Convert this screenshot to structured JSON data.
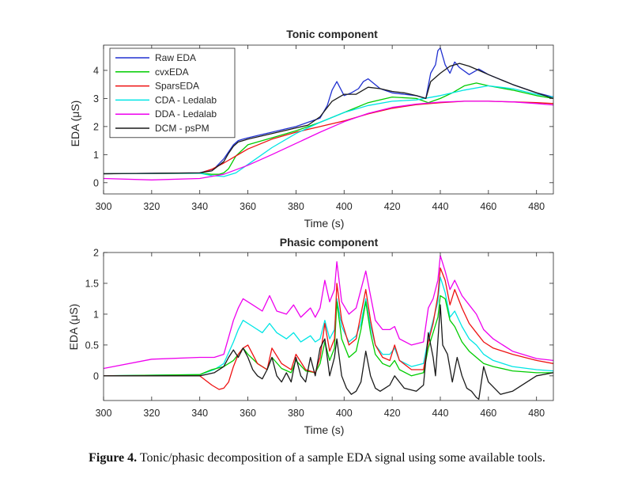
{
  "caption": {
    "label": "Figure 4.",
    "text": "Tonic/phasic decomposition of a sample EDA signal using some available tools."
  },
  "colors": {
    "Raw EDA": "#2030d0",
    "cvxEDA": "#00cc00",
    "SparsEDA": "#ee1111",
    "CDA - Ledalab": "#00e5e5",
    "DDA - Ledalab": "#ee00ee",
    "DCM - psPM": "#1a1a1a"
  },
  "chart_data": [
    {
      "type": "line",
      "title": "Tonic component",
      "xlabel": "Time (s)",
      "ylabel": "EDA (μS)",
      "xlim": [
        300,
        487
      ],
      "ylim": [
        -0.4,
        4.9
      ],
      "xticks": [
        300,
        320,
        340,
        360,
        380,
        400,
        420,
        440,
        460,
        480
      ],
      "yticks": [
        0,
        1,
        2,
        3,
        4
      ],
      "grid": false,
      "legend": "top-left",
      "series": [
        {
          "name": "Raw EDA",
          "x": [
            300,
            340,
            346,
            350,
            352,
            354,
            356,
            358,
            360,
            365,
            370,
            375,
            380,
            385,
            390,
            393,
            395,
            397,
            400,
            403,
            406,
            408,
            410,
            415,
            420,
            425,
            430,
            434,
            436,
            438,
            439,
            440,
            442,
            444,
            446,
            448,
            452,
            456,
            460,
            470,
            480,
            487
          ],
          "y": [
            0.32,
            0.35,
            0.5,
            0.85,
            1.1,
            1.35,
            1.5,
            1.55,
            1.6,
            1.7,
            1.8,
            1.9,
            2.0,
            2.15,
            2.3,
            2.75,
            3.3,
            3.6,
            3.1,
            3.2,
            3.35,
            3.6,
            3.7,
            3.35,
            3.2,
            3.15,
            3.1,
            3.0,
            3.9,
            4.2,
            4.7,
            4.8,
            4.2,
            3.9,
            4.3,
            4.1,
            3.85,
            4.05,
            3.85,
            3.5,
            3.2,
            3.05
          ]
        },
        {
          "name": "cvxEDA",
          "x": [
            300,
            340,
            345,
            348,
            350,
            352,
            355,
            360,
            370,
            380,
            390,
            400,
            410,
            420,
            430,
            435,
            440,
            445,
            450,
            455,
            460,
            470,
            480,
            487
          ],
          "y": [
            0.32,
            0.34,
            0.3,
            0.3,
            0.35,
            0.5,
            0.95,
            1.35,
            1.6,
            1.85,
            2.15,
            2.5,
            2.85,
            3.05,
            3.0,
            2.85,
            3.0,
            3.2,
            3.45,
            3.55,
            3.45,
            3.3,
            3.1,
            3.0
          ]
        },
        {
          "name": "SparsEDA",
          "x": [
            300,
            340,
            345,
            350,
            355,
            360,
            370,
            380,
            390,
            400,
            410,
            420,
            430,
            440,
            450,
            460,
            470,
            480,
            487
          ],
          "y": [
            0.32,
            0.34,
            0.48,
            0.7,
            0.95,
            1.2,
            1.55,
            1.8,
            2.0,
            2.2,
            2.45,
            2.65,
            2.78,
            2.85,
            2.9,
            2.9,
            2.88,
            2.85,
            2.82
          ]
        },
        {
          "name": "CDA - Ledalab",
          "x": [
            300,
            340,
            345,
            350,
            355,
            360,
            370,
            380,
            390,
            400,
            410,
            420,
            430,
            440,
            450,
            460,
            470,
            480,
            487
          ],
          "y": [
            0.32,
            0.34,
            0.25,
            0.22,
            0.35,
            0.65,
            1.25,
            1.75,
            2.15,
            2.5,
            2.75,
            2.9,
            2.95,
            3.1,
            3.3,
            3.45,
            3.35,
            3.15,
            3.05
          ]
        },
        {
          "name": "DDA - Ledalab",
          "x": [
            300,
            320,
            340,
            350,
            360,
            370,
            380,
            390,
            400,
            410,
            420,
            430,
            440,
            450,
            460,
            470,
            480,
            487
          ],
          "y": [
            0.15,
            0.1,
            0.15,
            0.3,
            0.62,
            1.0,
            1.4,
            1.8,
            2.17,
            2.47,
            2.68,
            2.8,
            2.87,
            2.9,
            2.9,
            2.88,
            2.82,
            2.77
          ]
        },
        {
          "name": "DCM - psPM",
          "x": [
            300,
            340,
            345,
            350,
            352,
            354,
            356,
            358,
            360,
            370,
            380,
            385,
            390,
            395,
            400,
            405,
            410,
            415,
            420,
            425,
            430,
            434,
            436,
            440,
            444,
            448,
            452,
            456,
            460,
            470,
            480,
            487
          ],
          "y": [
            0.32,
            0.35,
            0.42,
            0.75,
            1.05,
            1.3,
            1.45,
            1.5,
            1.55,
            1.75,
            1.95,
            2.05,
            2.35,
            2.9,
            3.15,
            3.15,
            3.4,
            3.35,
            3.25,
            3.2,
            3.1,
            3.0,
            3.6,
            3.9,
            4.15,
            4.25,
            4.15,
            4.0,
            3.85,
            3.5,
            3.2,
            3.0
          ]
        }
      ]
    },
    {
      "type": "line",
      "title": "Phasic component",
      "xlabel": "Time (s)",
      "ylabel": "EDA (μS)",
      "xlim": [
        300,
        487
      ],
      "ylim": [
        -0.4,
        2.0
      ],
      "xticks": [
        300,
        320,
        340,
        360,
        380,
        400,
        420,
        440,
        460,
        480
      ],
      "yticks": [
        0,
        0.5,
        1,
        1.5,
        2
      ],
      "grid": false,
      "series": [
        {
          "name": "DDA - Ledalab",
          "x": [
            300,
            320,
            340,
            346,
            350,
            354,
            356,
            358,
            362,
            366,
            369,
            372,
            376,
            379,
            382,
            386,
            388,
            390,
            392,
            394,
            396,
            397,
            399,
            402,
            405,
            407,
            409,
            411,
            413,
            416,
            419,
            421,
            423,
            428,
            433,
            435,
            437,
            439,
            440,
            442,
            444,
            446,
            449,
            452,
            455,
            458,
            462,
            470,
            480,
            487
          ],
          "y": [
            0.12,
            0.27,
            0.3,
            0.3,
            0.35,
            0.9,
            1.1,
            1.25,
            1.15,
            1.05,
            1.3,
            1.05,
            1.0,
            1.15,
            0.95,
            1.1,
            0.95,
            1.1,
            1.55,
            1.2,
            1.4,
            1.85,
            1.2,
            1.0,
            1.1,
            1.4,
            1.7,
            1.3,
            0.9,
            0.75,
            0.75,
            0.8,
            0.6,
            0.5,
            0.55,
            1.1,
            1.25,
            1.55,
            1.95,
            1.7,
            1.4,
            1.55,
            1.3,
            1.15,
            1.0,
            0.75,
            0.6,
            0.4,
            0.28,
            0.25
          ]
        },
        {
          "name": "CDA - Ledalab",
          "x": [
            300,
            340,
            346,
            350,
            354,
            356,
            358,
            362,
            366,
            369,
            372,
            376,
            379,
            382,
            386,
            388,
            390,
            392,
            394,
            396,
            397,
            399,
            402,
            405,
            407,
            409,
            411,
            413,
            416,
            419,
            421,
            423,
            428,
            433,
            435,
            437,
            439,
            440,
            442,
            444,
            446,
            449,
            452,
            455,
            458,
            462,
            470,
            480,
            487
          ],
          "y": [
            0.0,
            0.02,
            0.1,
            0.2,
            0.55,
            0.75,
            0.9,
            0.8,
            0.7,
            0.85,
            0.7,
            0.6,
            0.7,
            0.55,
            0.65,
            0.55,
            0.6,
            0.9,
            0.6,
            0.75,
            1.25,
            0.8,
            0.55,
            0.65,
            0.85,
            1.25,
            0.8,
            0.5,
            0.35,
            0.35,
            0.45,
            0.25,
            0.15,
            0.2,
            0.6,
            0.9,
            1.2,
            1.6,
            1.35,
            0.95,
            1.05,
            0.8,
            0.6,
            0.5,
            0.35,
            0.25,
            0.15,
            0.1,
            0.08
          ]
        },
        {
          "name": "cvxEDA",
          "x": [
            300,
            340,
            345,
            350,
            354,
            356,
            358,
            360,
            364,
            368,
            370,
            374,
            378,
            380,
            384,
            388,
            390,
            392,
            394,
            396,
            397,
            399,
            402,
            405,
            407,
            409,
            411,
            413,
            416,
            419,
            421,
            423,
            428,
            433,
            435,
            437,
            439,
            440,
            442,
            444,
            446,
            449,
            452,
            455,
            458,
            462,
            470,
            480,
            487
          ],
          "y": [
            0.0,
            0.02,
            0.1,
            0.15,
            0.25,
            0.35,
            0.45,
            0.35,
            0.2,
            0.1,
            0.3,
            0.12,
            0.05,
            0.25,
            0.08,
            0.05,
            0.2,
            0.55,
            0.25,
            0.45,
            1.2,
            0.6,
            0.3,
            0.4,
            0.75,
            1.2,
            0.7,
            0.35,
            0.2,
            0.15,
            0.25,
            0.1,
            0.0,
            0.05,
            0.45,
            0.7,
            0.95,
            1.3,
            1.25,
            0.9,
            0.8,
            0.55,
            0.4,
            0.3,
            0.2,
            0.15,
            0.08,
            0.05,
            0.05
          ]
        },
        {
          "name": "SparsEDA",
          "x": [
            300,
            340,
            345,
            348,
            350,
            352,
            354,
            356,
            358,
            360,
            364,
            368,
            370,
            374,
            378,
            380,
            384,
            388,
            390,
            392,
            394,
            396,
            397,
            399,
            402,
            405,
            407,
            409,
            411,
            413,
            416,
            419,
            421,
            423,
            428,
            433,
            435,
            437,
            439,
            440,
            442,
            444,
            446,
            449,
            452,
            455,
            458,
            462,
            470,
            480,
            487
          ],
          "y": [
            0.0,
            0.0,
            -0.15,
            -0.22,
            -0.2,
            -0.1,
            0.15,
            0.35,
            0.45,
            0.5,
            0.2,
            0.1,
            0.45,
            0.2,
            0.1,
            0.35,
            0.1,
            0.05,
            0.3,
            0.85,
            0.4,
            0.6,
            1.5,
            0.9,
            0.5,
            0.6,
            1.0,
            1.4,
            0.9,
            0.5,
            0.3,
            0.25,
            0.5,
            0.25,
            0.1,
            0.1,
            0.55,
            0.85,
            1.3,
            1.75,
            1.55,
            1.15,
            1.4,
            1.1,
            0.85,
            0.7,
            0.55,
            0.45,
            0.35,
            0.25,
            0.2
          ]
        },
        {
          "name": "DCM - psPM",
          "x": [
            300,
            340,
            346,
            350,
            352,
            354,
            356,
            358,
            360,
            362,
            364,
            366,
            368,
            370,
            372,
            374,
            376,
            378,
            380,
            382,
            384,
            386,
            388,
            390,
            392,
            394,
            396,
            397,
            399,
            401,
            403,
            405,
            407,
            409,
            411,
            413,
            415,
            417,
            419,
            421,
            423,
            425,
            430,
            433,
            435,
            437,
            438,
            440,
            441,
            443,
            445,
            447,
            449,
            451,
            453,
            455,
            456,
            458,
            460,
            465,
            470,
            480,
            487
          ],
          "y": [
            0.0,
            0.0,
            0.05,
            0.15,
            0.3,
            0.42,
            0.3,
            0.45,
            0.3,
            0.1,
            0.0,
            -0.05,
            0.1,
            0.3,
            0.0,
            -0.1,
            0.05,
            -0.1,
            0.3,
            0.0,
            -0.1,
            0.3,
            0.0,
            0.45,
            0.6,
            0.0,
            0.3,
            0.6,
            0.0,
            -0.2,
            -0.3,
            -0.25,
            -0.1,
            0.4,
            0.0,
            -0.2,
            -0.25,
            -0.2,
            -0.15,
            0.0,
            -0.1,
            -0.2,
            -0.25,
            -0.15,
            0.7,
            0.3,
            0.0,
            1.15,
            0.5,
            0.35,
            -0.1,
            0.3,
            0.0,
            -0.2,
            -0.25,
            -0.35,
            -0.38,
            0.15,
            -0.1,
            -0.3,
            -0.25,
            0.0,
            0.05
          ]
        }
      ]
    }
  ]
}
